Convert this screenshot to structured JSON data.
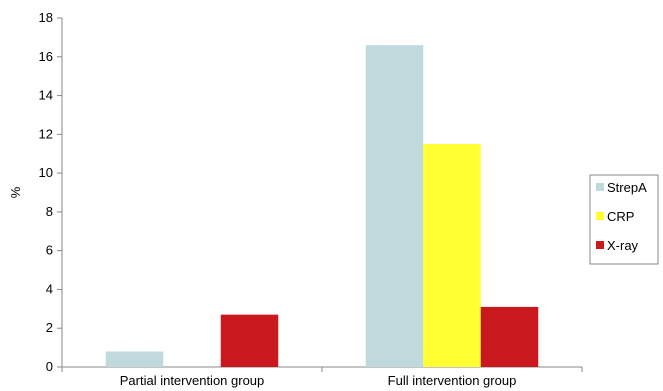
{
  "chart_data": {
    "type": "bar",
    "categories": [
      "Partial intervention group",
      "Full intervention group"
    ],
    "series": [
      {
        "name": "StrepA",
        "color": "#bfd9dc",
        "values": [
          0.8,
          16.6
        ]
      },
      {
        "name": "CRP",
        "color": "#ffff33",
        "values": [
          0.0,
          11.5
        ]
      },
      {
        "name": "X-ray",
        "color": "#c9191e",
        "values": [
          2.7,
          3.1
        ]
      }
    ],
    "ylabel": "%",
    "xlabel": "",
    "ylim": [
      0,
      18
    ],
    "yticks": [
      0,
      2,
      4,
      6,
      8,
      10,
      12,
      14,
      16,
      18
    ],
    "grid": false,
    "legend": "right"
  }
}
